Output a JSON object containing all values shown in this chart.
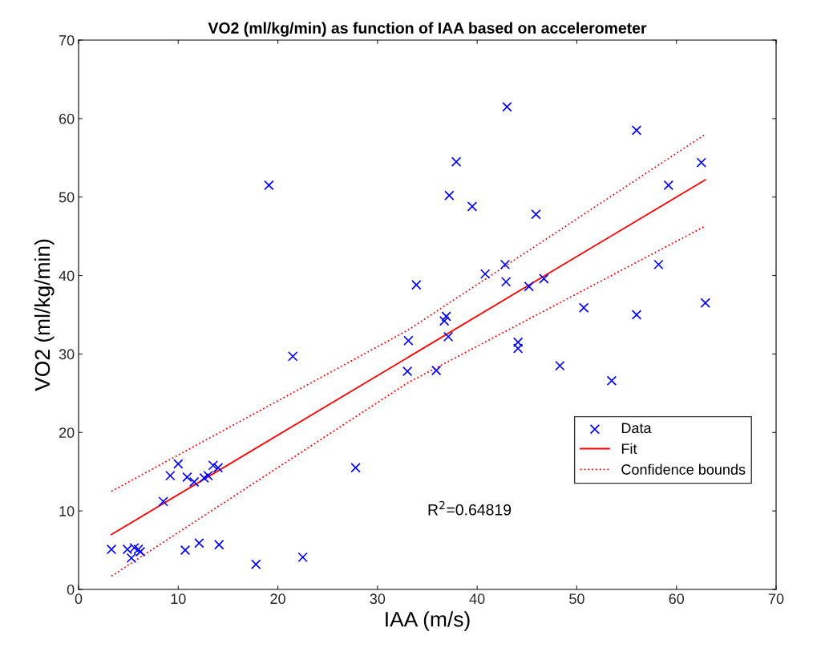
{
  "chart_data": {
    "type": "scatter",
    "title": "VO2 (ml/kg/min) as function of IAA based on accelerometer",
    "xlabel": "IAA (m/s)",
    "ylabel": "VO2 (ml/kg/min)",
    "xlim": [
      0,
      70
    ],
    "ylim": [
      0,
      70
    ],
    "xticks": [
      0,
      10,
      20,
      30,
      40,
      50,
      60,
      70
    ],
    "yticks": [
      0,
      10,
      20,
      30,
      40,
      50,
      60,
      70
    ],
    "grid": false,
    "legend": "lower right",
    "annotations": [
      "R$^{2}$=0.64819"
    ],
    "series": [
      {
        "name": "Data",
        "marker": "cross",
        "color": "#0000ff",
        "x": [
          3.3,
          4.9,
          5.3,
          5.6,
          6.0,
          6.2,
          8.5,
          9.2,
          10.0,
          10.7,
          10.9,
          11.6,
          12.1,
          12.6,
          13.0,
          13.5,
          14.0,
          14.1,
          17.8,
          19.1,
          21.5,
          22.5,
          27.8,
          33.0,
          33.1,
          33.9,
          35.9,
          36.7,
          36.9,
          37.1,
          37.2,
          37.9,
          39.5,
          40.8,
          42.8,
          42.9,
          43.0,
          44.1,
          44.1,
          45.2,
          45.9,
          46.7,
          48.3,
          50.7,
          53.5,
          56.0,
          56.0,
          58.2,
          59.2,
          62.5,
          62.9
        ],
        "values": [
          5.1,
          5.1,
          4.0,
          5.3,
          5.1,
          4.8,
          11.2,
          14.5,
          16.0,
          5.0,
          14.3,
          13.7,
          5.9,
          14.2,
          14.5,
          15.8,
          15.5,
          5.7,
          3.2,
          51.5,
          29.7,
          4.1,
          15.5,
          27.8,
          31.7,
          38.8,
          27.9,
          34.2,
          34.8,
          32.2,
          50.2,
          54.5,
          48.8,
          40.2,
          41.4,
          39.2,
          61.5,
          31.5,
          30.7,
          38.6,
          47.8,
          39.6,
          28.5,
          35.9,
          26.6,
          58.5,
          35.0,
          41.4,
          51.5,
          54.4,
          36.5
        ]
      },
      {
        "name": "Fit",
        "type": "line",
        "line_style": "solid",
        "color": "#ff0000",
        "x": [
          3.3,
          62.9
        ],
        "values": [
          7.0,
          52.2
        ]
      },
      {
        "name": "Confidence bounds",
        "type": "line",
        "line_style": "dotted",
        "color": "#ff0000",
        "x": [
          3.3,
          33.0,
          62.9
        ],
        "values": [
          12.5,
          33.0,
          58.0
        ]
      },
      {
        "type": "line",
        "line_style": "dotted",
        "color": "#ff0000",
        "x": [
          3.3,
          33.0,
          62.9
        ],
        "values": [
          1.7,
          26.3,
          46.3
        ]
      }
    ]
  }
}
